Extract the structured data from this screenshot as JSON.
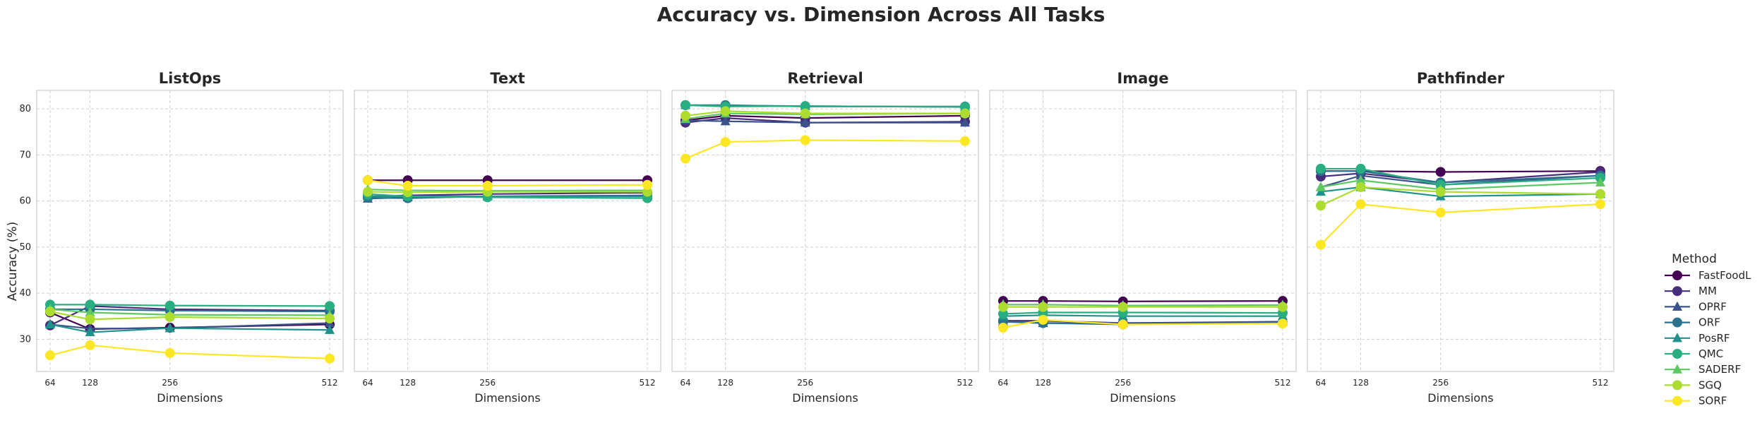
{
  "chart_data": {
    "type": "line",
    "title": "Accuracy vs. Dimension Across All Tasks",
    "ylabel": "Accuracy (%)",
    "xlabel": "Dimensions",
    "x": [
      64,
      128,
      256,
      512
    ],
    "x_tick_labels": [
      "64",
      "128",
      "256",
      "512"
    ],
    "ylim": [
      23,
      84
    ],
    "y_ticks": [
      30,
      40,
      50,
      60,
      70,
      80
    ],
    "y_tick_labels": [
      "30",
      "40",
      "50",
      "60",
      "70",
      "80"
    ],
    "grid": true,
    "legend": {
      "title": "Method",
      "placement": "right",
      "entries": [
        {
          "name": "FastFoodL",
          "color": "#440154",
          "marker": "circle"
        },
        {
          "name": "MM",
          "color": "#472d7b",
          "marker": "circle"
        },
        {
          "name": "OPRF",
          "color": "#3b528b",
          "marker": "triangle"
        },
        {
          "name": "ORF",
          "color": "#2c728e",
          "marker": "circle"
        },
        {
          "name": "PosRF",
          "color": "#21918c",
          "marker": "triangle"
        },
        {
          "name": "QMC",
          "color": "#28ae80",
          "marker": "circle"
        },
        {
          "name": "SADERF",
          "color": "#5ec962",
          "marker": "triangle"
        },
        {
          "name": "SGQ",
          "color": "#addc30",
          "marker": "circle"
        },
        {
          "name": "SORF",
          "color": "#fde725",
          "marker": "circle"
        }
      ]
    },
    "panels": [
      {
        "title": "ListOps",
        "series": [
          {
            "name": "FastFoodL",
            "values": [
              35.8,
              32.2,
              32.5,
              33.2
            ]
          },
          {
            "name": "MM",
            "values": [
              33.0,
              37.2,
              36.5,
              36.2
            ]
          },
          {
            "name": "OPRF",
            "values": [
              33.2,
              32.3,
              32.4,
              33.5
            ]
          },
          {
            "name": "ORF",
            "values": [
              36.5,
              36.5,
              36.2,
              36.0
            ]
          },
          {
            "name": "PosRF",
            "values": [
              33.2,
              31.5,
              32.4,
              32.0
            ]
          },
          {
            "name": "QMC",
            "values": [
              37.5,
              37.5,
              37.3,
              37.2
            ]
          },
          {
            "name": "SADERF",
            "values": [
              36.5,
              35.8,
              35.3,
              35.2
            ]
          },
          {
            "name": "SGQ",
            "values": [
              36.0,
              34.3,
              34.8,
              34.5
            ]
          },
          {
            "name": "SORF",
            "values": [
              26.5,
              28.7,
              27.0,
              25.8
            ]
          }
        ]
      },
      {
        "title": "Text",
        "series": [
          {
            "name": "FastFoodL",
            "values": [
              64.5,
              64.5,
              64.5,
              64.5
            ]
          },
          {
            "name": "MM",
            "values": [
              61.0,
              61.2,
              61.5,
              61.8
            ]
          },
          {
            "name": "OPRF",
            "values": [
              60.5,
              60.8,
              61.0,
              61.2
            ]
          },
          {
            "name": "ORF",
            "values": [
              60.7,
              60.6,
              61.0,
              61.0
            ]
          },
          {
            "name": "PosRF",
            "values": [
              61.0,
              61.0,
              61.0,
              61.0
            ]
          },
          {
            "name": "QMC",
            "values": [
              61.5,
              61.0,
              60.8,
              60.6
            ]
          },
          {
            "name": "SADERF",
            "values": [
              62.5,
              62.3,
              62.2,
              62.3
            ]
          },
          {
            "name": "SGQ",
            "values": [
              62.0,
              61.9,
              62.0,
              62.0
            ]
          },
          {
            "name": "SORF",
            "values": [
              64.5,
              63.3,
              63.3,
              63.5
            ]
          }
        ]
      },
      {
        "title": "Retrieval",
        "series": [
          {
            "name": "FastFoodL",
            "values": [
              77.5,
              78.5,
              78.0,
              78.5
            ]
          },
          {
            "name": "MM",
            "values": [
              77.0,
              78.0,
              77.0,
              77.2
            ]
          },
          {
            "name": "OPRF",
            "values": [
              77.5,
              77.3,
              77.0,
              77.0
            ]
          },
          {
            "name": "ORF",
            "values": [
              80.8,
              80.8,
              80.5,
              80.5
            ]
          },
          {
            "name": "PosRF",
            "values": [
              80.8,
              80.7,
              80.6,
              80.4
            ]
          },
          {
            "name": "QMC",
            "values": [
              80.8,
              80.5,
              80.6,
              80.4
            ]
          },
          {
            "name": "SADERF",
            "values": [
              77.8,
              79.0,
              78.8,
              79.0
            ]
          },
          {
            "name": "SGQ",
            "values": [
              78.5,
              79.5,
              79.0,
              79.0
            ]
          },
          {
            "name": "SORF",
            "values": [
              69.2,
              72.8,
              73.2,
              73.0
            ]
          }
        ]
      },
      {
        "title": "Image",
        "series": [
          {
            "name": "FastFoodL",
            "values": [
              38.3,
              38.3,
              38.2,
              38.3
            ]
          },
          {
            "name": "MM",
            "values": [
              34.0,
              34.0,
              33.5,
              33.5
            ]
          },
          {
            "name": "OPRF",
            "values": [
              33.8,
              33.5,
              33.5,
              33.8
            ]
          },
          {
            "name": "ORF",
            "values": [
              33.8,
              33.5,
              33.2,
              33.5
            ]
          },
          {
            "name": "PosRF",
            "values": [
              35.0,
              35.2,
              35.0,
              35.0
            ]
          },
          {
            "name": "QMC",
            "values": [
              35.5,
              35.8,
              35.8,
              35.7
            ]
          },
          {
            "name": "SADERF",
            "values": [
              37.5,
              37.5,
              37.3,
              37.4
            ]
          },
          {
            "name": "SGQ",
            "values": [
              37.0,
              37.0,
              37.0,
              37.0
            ]
          },
          {
            "name": "SORF",
            "values": [
              32.5,
              34.2,
              33.2,
              33.4
            ]
          }
        ]
      },
      {
        "title": "Pathfinder",
        "series": [
          {
            "name": "FastFoodL",
            "values": [
              66.5,
              66.5,
              66.3,
              66.5
            ]
          },
          {
            "name": "MM",
            "values": [
              65.3,
              66.0,
              64.0,
              66.3
            ]
          },
          {
            "name": "OPRF",
            "values": [
              63.0,
              65.5,
              63.5,
              65.5
            ]
          },
          {
            "name": "ORF",
            "values": [
              66.5,
              66.5,
              64.0,
              65.5
            ]
          },
          {
            "name": "PosRF",
            "values": [
              62.0,
              63.0,
              61.0,
              61.5
            ]
          },
          {
            "name": "QMC",
            "values": [
              67.0,
              67.0,
              63.5,
              65.0
            ]
          },
          {
            "name": "SADERF",
            "values": [
              63.0,
              64.5,
              62.5,
              64.0
            ]
          },
          {
            "name": "SGQ",
            "values": [
              59.0,
              63.0,
              62.0,
              61.5
            ]
          },
          {
            "name": "SORF",
            "values": [
              50.5,
              59.3,
              57.5,
              59.3
            ]
          }
        ]
      }
    ]
  }
}
